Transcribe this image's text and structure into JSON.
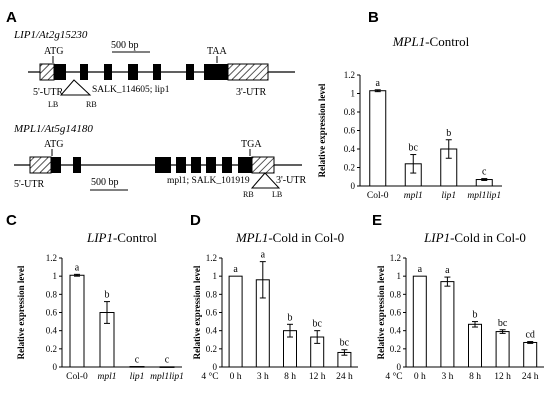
{
  "panel_labels": [
    "A",
    "B",
    "C",
    "D",
    "E"
  ],
  "gene_structures": {
    "lip1": {
      "title": "LIP1/At2g15230",
      "scale_bar": "500 bp",
      "start_codon": "ATG",
      "stop_codon": "TAA",
      "utr5": "5'-UTR",
      "utr3": "3'-UTR",
      "insertion": "SALK_114605; lip1",
      "lb": "LB",
      "rb": "RB"
    },
    "mpl1": {
      "title": "MPL1/At5g14180",
      "scale_bar": "500 bp",
      "start_codon": "ATG",
      "stop_codon": "TGA",
      "utr5": "5'-UTR",
      "utr3": "3'-UTR",
      "insertion": "mpl1; SALK_101919",
      "lb": "LB",
      "rb": "RB"
    }
  },
  "chart_data": [
    {
      "panel": "B",
      "type": "bar",
      "title": "MPL1-Control",
      "ylabel": "Relative expression level",
      "categories": [
        "Col-0",
        "mpl1",
        "lip1",
        "mpl1lip1"
      ],
      "values": [
        1.03,
        0.24,
        0.4,
        0.07
      ],
      "errors": [
        0.01,
        0.1,
        0.1,
        0.01
      ],
      "letters": [
        "a",
        "bc",
        "b",
        "c"
      ],
      "ylim": [
        0,
        1.2
      ],
      "yticks": [
        "0",
        "0.2",
        "0.4",
        "0.6",
        "0.8",
        "1",
        "1.2"
      ]
    },
    {
      "panel": "C",
      "type": "bar",
      "title": "LIP1-Control",
      "ylabel": "Relative expression level",
      "categories": [
        "Col-0",
        "mpl1",
        "lip1",
        "mpl1lip1"
      ],
      "values": [
        1.01,
        0.6,
        0.005,
        0.002
      ],
      "errors": [
        0.01,
        0.12,
        0.002,
        0.001
      ],
      "letters": [
        "a",
        "b",
        "c",
        "c"
      ],
      "ylim": [
        0,
        1.2
      ],
      "yticks": [
        "0",
        "0.2",
        "0.4",
        "0.6",
        "0.8",
        "1",
        "1.2"
      ]
    },
    {
      "panel": "D",
      "type": "bar",
      "title": "MPL1-Cold in Col-0",
      "ylabel": "Relative expression level",
      "x_prefix": "4 °C",
      "categories": [
        "0 h",
        "3 h",
        "8 h",
        "12 h",
        "24 h"
      ],
      "values": [
        1.0,
        0.96,
        0.4,
        0.33,
        0.16
      ],
      "errors": [
        0.0,
        0.2,
        0.07,
        0.07,
        0.03
      ],
      "letters": [
        "a",
        "a",
        "b",
        "bc",
        "bc"
      ],
      "ylim": [
        0,
        1.2
      ],
      "yticks": [
        "0",
        "0.2",
        "0.4",
        "0.6",
        "0.8",
        "1",
        "1.2"
      ]
    },
    {
      "panel": "E",
      "type": "bar",
      "title": "LIP1-Cold in Col-0",
      "ylabel": "Relative expression level",
      "x_prefix": "4 °C",
      "categories": [
        "0 h",
        "3 h",
        "8 h",
        "12 h",
        "24 h"
      ],
      "values": [
        1.0,
        0.94,
        0.47,
        0.39,
        0.27
      ],
      "errors": [
        0.0,
        0.05,
        0.03,
        0.02,
        0.01
      ],
      "letters": [
        "a",
        "a",
        "b",
        "bc",
        "cd"
      ],
      "ylim": [
        0,
        1.2
      ],
      "yticks": [
        "0",
        "0.2",
        "0.4",
        "0.6",
        "0.8",
        "1",
        "1.2"
      ]
    }
  ]
}
